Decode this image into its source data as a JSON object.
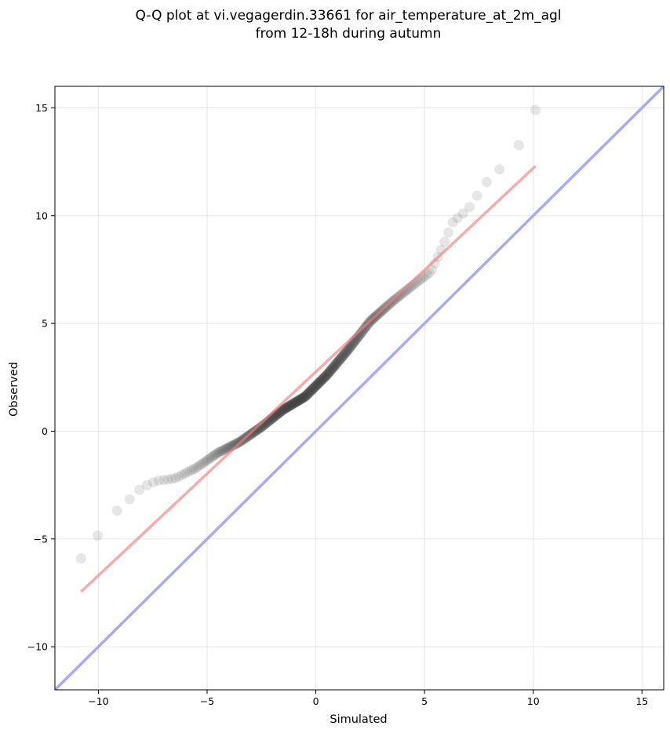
{
  "chart_data": {
    "type": "scatter",
    "title_line1": "Q-Q plot at vi.vegagerdin.33661 for air_temperature_at_2m_agl",
    "title_line2": "from 12-18h during autumn",
    "xlabel": "Simulated",
    "ylabel": "Observed",
    "xlim": [
      -12,
      16
    ],
    "ylim": [
      -12,
      16
    ],
    "xticks": [
      -10,
      -5,
      0,
      5,
      10,
      15
    ],
    "yticks": [
      -10,
      -5,
      0,
      5,
      10,
      15
    ],
    "xtick_labels": [
      "−10",
      "−5",
      "0",
      "5",
      "10",
      "15"
    ],
    "ytick_labels": [
      "−10",
      "−5",
      "0",
      "5",
      "10",
      "15"
    ],
    "grid": true,
    "identity_line": {
      "x": [
        -12,
        16
      ],
      "y": [
        -12,
        16
      ],
      "color": "#aaaaf4"
    },
    "fit_line": {
      "x": [
        -10.8,
        10.1
      ],
      "y": [
        -7.45,
        12.3
      ],
      "color": "#f4a9a9"
    },
    "point_color": "#404040",
    "quantile_curve_anchors": {
      "x": [
        -10.8,
        -10.2,
        -9.5,
        -8.7,
        -8.0,
        -7.3,
        -6.5,
        -5.5,
        -4.5,
        -3.5,
        -2.5,
        -1.5,
        -0.5,
        0.5,
        1.5,
        2.5,
        3.5,
        4.5,
        5.3,
        5.8,
        6.3,
        7.0,
        7.8,
        8.5,
        9.0,
        9.5,
        9.9,
        10.1
      ],
      "y": [
        -5.9,
        -5.1,
        -4.0,
        -3.3,
        -2.6,
        -2.3,
        -2.2,
        -1.7,
        -1.0,
        -0.5,
        0.2,
        1.0,
        1.6,
        2.6,
        3.8,
        5.1,
        6.0,
        6.8,
        7.4,
        8.5,
        9.7,
        10.3,
        11.5,
        12.2,
        12.8,
        13.5,
        14.2,
        14.9
      ]
    }
  }
}
